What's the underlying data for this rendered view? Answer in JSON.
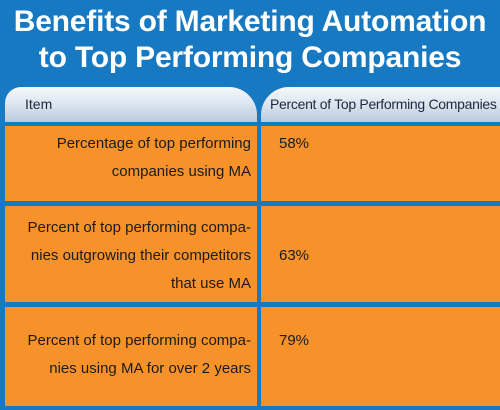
{
  "title": {
    "line1": "Benefits of Marketing Automation",
    "line2": "to Top Performing Companies"
  },
  "chart_data": {
    "type": "table",
    "columns": [
      "Item",
      "Percent of Top Performing Companies"
    ],
    "rows": [
      {
        "item_lines": [
          "Percentage of top performing",
          "companies using MA"
        ],
        "value": "58%"
      },
      {
        "item_lines": [
          "Percent of top performing compa-",
          "nies outgrowing their competitors",
          "that use MA"
        ],
        "value": "63%"
      },
      {
        "item_lines": [
          "Percent of top performing compa-",
          "nies using MA for over 2 years"
        ],
        "value": "79%"
      }
    ]
  },
  "colors": {
    "background": "#1679c2",
    "row_fill": "#f7922a",
    "header_fill": "#dfe7f1"
  }
}
